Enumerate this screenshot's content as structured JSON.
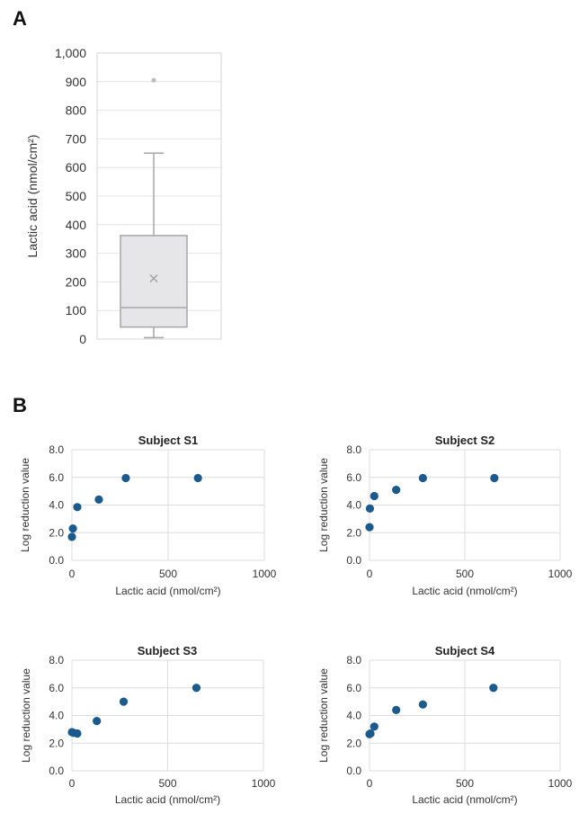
{
  "panels": {
    "a_label": "A",
    "b_label": "B"
  },
  "chart_data": [
    {
      "type": "box",
      "ylabel": "Lactic acid (nmol/cm²)",
      "ylim": [
        0,
        1000
      ],
      "yticks": [
        0,
        100,
        200,
        300,
        400,
        500,
        600,
        700,
        800,
        900,
        1000
      ],
      "ytick_labels": [
        "0",
        "100",
        "200",
        "300",
        "400",
        "500",
        "600",
        "700",
        "800",
        "900",
        "1,000"
      ],
      "grid": true,
      "box": {
        "min": 5,
        "q1": 42,
        "median": 110,
        "q3": 362,
        "max": 650,
        "mean": 212,
        "outliers": [
          905
        ]
      },
      "colors": {
        "box_fill": "#e6e5e8",
        "box_stroke": "#a6a6a6",
        "outlier": "#bdbdbd",
        "mean_marker": "#a6a6a6"
      }
    },
    {
      "type": "scatter",
      "title": "Subject S1",
      "xlabel": "Lactic acid (nmol/cm²)",
      "ylabel": "Log reduction value",
      "xlim": [
        0,
        1000
      ],
      "xticks": [
        0,
        500,
        1000
      ],
      "ylim": [
        0,
        8
      ],
      "yticks": [
        "0.0",
        "2.0",
        "4.0",
        "6.0",
        "8.0"
      ],
      "grid": true,
      "points": [
        {
          "x": 0,
          "y": 1.7
        },
        {
          "x": 5,
          "y": 2.3
        },
        {
          "x": 28,
          "y": 3.85
        },
        {
          "x": 140,
          "y": 4.4
        },
        {
          "x": 280,
          "y": 5.95
        },
        {
          "x": 655,
          "y": 5.95
        }
      ],
      "color": "#1a5a8c"
    },
    {
      "type": "scatter",
      "title": "Subject S2",
      "xlabel": "Lactic acid (nmol/cm²)",
      "ylabel": "Log reduction value",
      "xlim": [
        0,
        1000
      ],
      "xticks": [
        0,
        500,
        1000
      ],
      "ylim": [
        0,
        8
      ],
      "yticks": [
        "0.0",
        "2.0",
        "4.0",
        "6.0",
        "8.0"
      ],
      "grid": true,
      "points": [
        {
          "x": 0,
          "y": 2.4
        },
        {
          "x": 2,
          "y": 3.75
        },
        {
          "x": 25,
          "y": 4.65
        },
        {
          "x": 140,
          "y": 5.1
        },
        {
          "x": 280,
          "y": 5.95
        },
        {
          "x": 655,
          "y": 5.95
        }
      ],
      "color": "#1a5a8c"
    },
    {
      "type": "scatter",
      "title": "Subject S3",
      "xlabel": "Lactic acid (nmol/cm²)",
      "ylabel": "Log reduction value",
      "xlim": [
        0,
        1000
      ],
      "xticks": [
        0,
        500,
        1000
      ],
      "ylim": [
        0,
        8
      ],
      "yticks": [
        "0.0",
        "2.0",
        "4.0",
        "6.0",
        "8.0"
      ],
      "grid": true,
      "points": [
        {
          "x": 0,
          "y": 2.8
        },
        {
          "x": 8,
          "y": 2.75
        },
        {
          "x": 28,
          "y": 2.7
        },
        {
          "x": 130,
          "y": 3.6
        },
        {
          "x": 270,
          "y": 5.0
        },
        {
          "x": 650,
          "y": 6.0
        }
      ],
      "color": "#1a5a8c"
    },
    {
      "type": "scatter",
      "title": "Subject S4",
      "xlabel": "Lactic acid (nmol/cm²)",
      "ylabel": "Log reduction value",
      "xlim": [
        0,
        1000
      ],
      "xticks": [
        0,
        500,
        1000
      ],
      "ylim": [
        0,
        8
      ],
      "yticks": [
        "0.0",
        "2.0",
        "4.0",
        "6.0",
        "8.0"
      ],
      "grid": true,
      "points": [
        {
          "x": 0,
          "y": 2.65
        },
        {
          "x": 5,
          "y": 2.7
        },
        {
          "x": 25,
          "y": 3.2
        },
        {
          "x": 140,
          "y": 4.4
        },
        {
          "x": 280,
          "y": 4.8
        },
        {
          "x": 650,
          "y": 6.0
        }
      ],
      "color": "#1a5a8c"
    }
  ]
}
